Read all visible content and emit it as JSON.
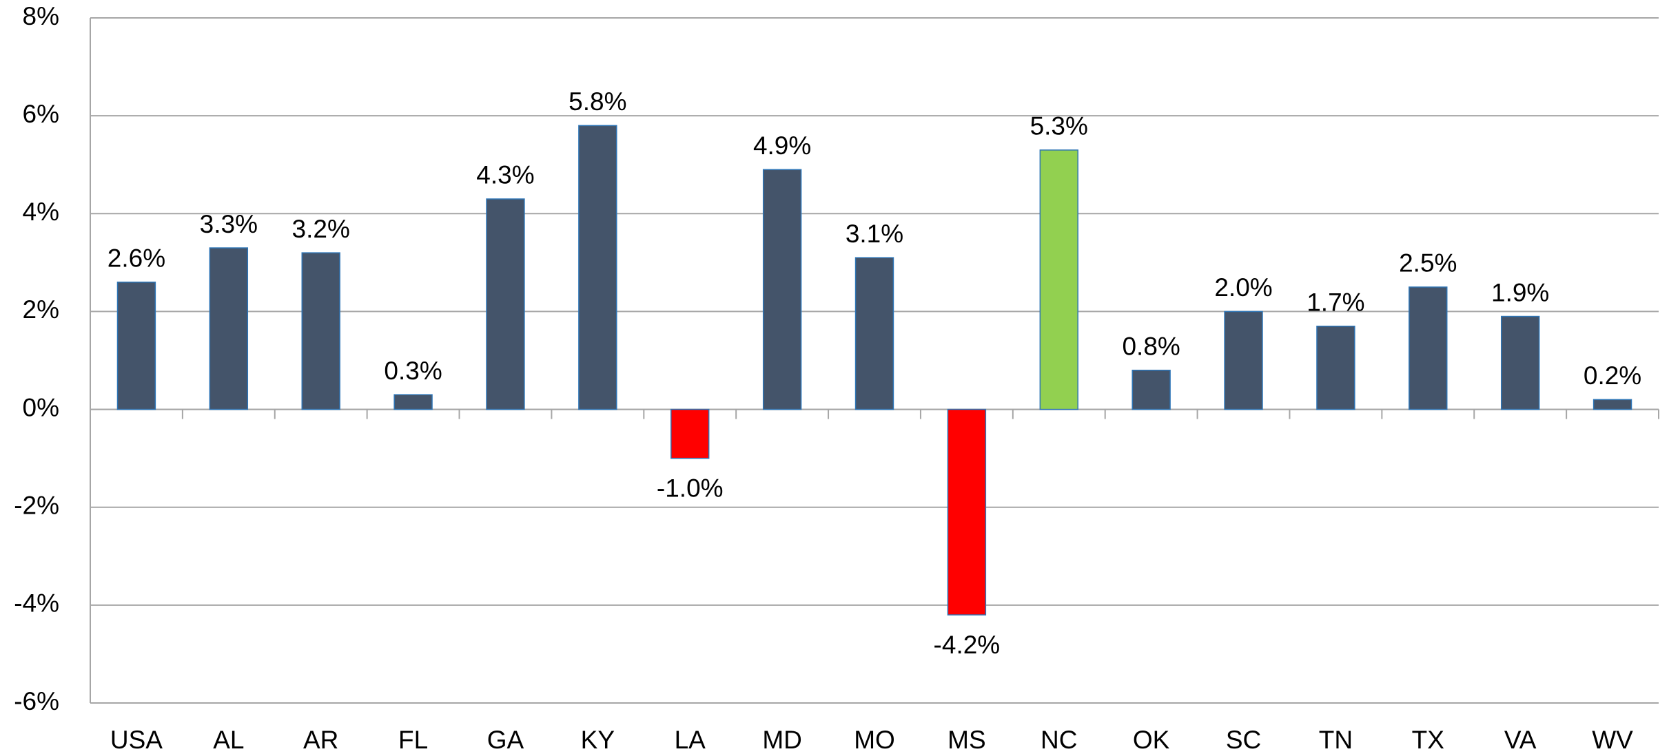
{
  "chart_data": {
    "type": "bar",
    "categories": [
      "USA",
      "AL",
      "AR",
      "FL",
      "GA",
      "KY",
      "LA",
      "MD",
      "MO",
      "MS",
      "NC",
      "OK",
      "SC",
      "TN",
      "TX",
      "VA",
      "WV"
    ],
    "values": [
      2.6,
      3.3,
      3.2,
      0.3,
      4.3,
      5.8,
      -1.0,
      4.9,
      3.1,
      -4.2,
      5.3,
      0.8,
      2.0,
      1.7,
      2.5,
      1.9,
      0.2
    ],
    "value_labels": [
      "2.6%",
      "3.3%",
      "3.2%",
      "0.3%",
      "4.3%",
      "5.8%",
      "-1.0%",
      "4.9%",
      "3.1%",
      "-4.2%",
      "5.3%",
      "0.8%",
      "2.0%",
      "1.7%",
      "2.5%",
      "1.9%",
      "0.2%"
    ],
    "colors": [
      "#44546a",
      "#44546a",
      "#44546a",
      "#44546a",
      "#44546a",
      "#44546a",
      "#ff0000",
      "#44546a",
      "#44546a",
      "#ff0000",
      "#92d050",
      "#44546a",
      "#44546a",
      "#44546a",
      "#44546a",
      "#44546a",
      "#44546a"
    ],
    "ylim": [
      -6,
      8
    ],
    "yticks": [
      {
        "value": -6,
        "label": "-6%"
      },
      {
        "value": -4,
        "label": "-4%"
      },
      {
        "value": -2,
        "label": "-2%"
      },
      {
        "value": 0,
        "label": "0%"
      },
      {
        "value": 2,
        "label": "2%"
      },
      {
        "value": 4,
        "label": "4%"
      },
      {
        "value": 6,
        "label": "6%"
      },
      {
        "value": 8,
        "label": "8%"
      }
    ],
    "grid": true
  }
}
